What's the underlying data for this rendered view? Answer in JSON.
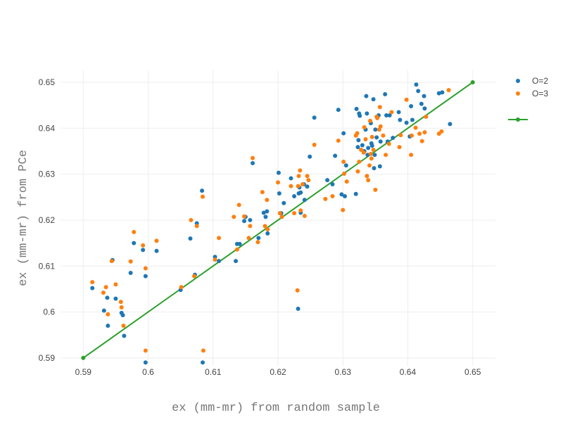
{
  "chart_data": {
    "type": "scatter",
    "title": "",
    "xlabel": "ex (mm-mr) from random sample",
    "ylabel": "ex (mm-mr) from PCe",
    "xlim": [
      0.5865,
      0.6535
    ],
    "ylim": [
      0.5883,
      0.6526
    ],
    "xticks": [
      0.59,
      0.6,
      0.61,
      0.62,
      0.63,
      0.64,
      0.65
    ],
    "xtick_labels": [
      "0.59",
      "0.6",
      "0.61",
      "0.62",
      "0.63",
      "0.64",
      "0.65"
    ],
    "yticks": [
      0.59,
      0.6,
      0.61,
      0.62,
      0.63,
      0.64,
      0.65
    ],
    "ytick_labels": [
      "0.59",
      "0.6",
      "0.61",
      "0.62",
      "0.63",
      "0.64",
      "0.65"
    ],
    "grid": true,
    "legend_position": "top-right",
    "series": [
      {
        "name": "O=2",
        "mode": "markers",
        "color": "#1f77b4",
        "points": [
          [
            0.5914,
            0.6052
          ],
          [
            0.5932,
            0.6003
          ],
          [
            0.5937,
            0.6031
          ],
          [
            0.5938,
            0.597
          ],
          [
            0.5945,
            0.6113
          ],
          [
            0.595,
            0.6029
          ],
          [
            0.5959,
            0.5998
          ],
          [
            0.5961,
            0.5993
          ],
          [
            0.5963,
            0.5948
          ],
          [
            0.5973,
            0.6085
          ],
          [
            0.5978,
            0.615
          ],
          [
            0.5992,
            0.6135
          ],
          [
            0.5996,
            0.6078
          ],
          [
            0.5996,
            0.589
          ],
          [
            0.6013,
            0.6133
          ],
          [
            0.605,
            0.6048
          ],
          [
            0.6065,
            0.616
          ],
          [
            0.6072,
            0.6081
          ],
          [
            0.6075,
            0.6193
          ],
          [
            0.6083,
            0.6264
          ],
          [
            0.6084,
            0.589
          ],
          [
            0.6103,
            0.612
          ],
          [
            0.6109,
            0.6111
          ],
          [
            0.6135,
            0.6111
          ],
          [
            0.6137,
            0.6148
          ],
          [
            0.6141,
            0.6148
          ],
          [
            0.6148,
            0.6198
          ],
          [
            0.615,
            0.6207
          ],
          [
            0.6157,
            0.62
          ],
          [
            0.6161,
            0.6324
          ],
          [
            0.617,
            0.6161
          ],
          [
            0.6178,
            0.6216
          ],
          [
            0.6181,
            0.6207
          ],
          [
            0.6183,
            0.6219
          ],
          [
            0.6184,
            0.6171
          ],
          [
            0.6201,
            0.6303
          ],
          [
            0.6202,
            0.6258
          ],
          [
            0.6205,
            0.6215
          ],
          [
            0.6209,
            0.6237
          ],
          [
            0.622,
            0.6291
          ],
          [
            0.6225,
            0.6252
          ],
          [
            0.6231,
            0.6007
          ],
          [
            0.6232,
            0.6258
          ],
          [
            0.6233,
            0.6271
          ],
          [
            0.6235,
            0.626
          ],
          [
            0.6235,
            0.6216
          ],
          [
            0.624,
            0.6278
          ],
          [
            0.6241,
            0.6244
          ],
          [
            0.6245,
            0.6273
          ],
          [
            0.6249,
            0.6338
          ],
          [
            0.6256,
            0.6423
          ],
          [
            0.6276,
            0.6287
          ],
          [
            0.6284,
            0.6278
          ],
          [
            0.6288,
            0.634
          ],
          [
            0.6293,
            0.644
          ],
          [
            0.6298,
            0.6256
          ],
          [
            0.6301,
            0.6389
          ],
          [
            0.6303,
            0.6252
          ],
          [
            0.6305,
            0.6319
          ],
          [
            0.632,
            0.6257
          ],
          [
            0.6321,
            0.6442
          ],
          [
            0.6323,
            0.6359
          ],
          [
            0.6324,
            0.6374
          ],
          [
            0.6325,
            0.6432
          ],
          [
            0.6326,
            0.6427
          ],
          [
            0.633,
            0.6363
          ],
          [
            0.6333,
            0.635
          ],
          [
            0.6335,
            0.6397
          ],
          [
            0.6336,
            0.647
          ],
          [
            0.6337,
            0.6432
          ],
          [
            0.6338,
            0.6342
          ],
          [
            0.6339,
            0.6357
          ],
          [
            0.6343,
            0.6411
          ],
          [
            0.6344,
            0.6367
          ],
          [
            0.6345,
            0.6362
          ],
          [
            0.6347,
            0.6463
          ],
          [
            0.6348,
            0.6313
          ],
          [
            0.6349,
            0.6342
          ],
          [
            0.635,
            0.6397
          ],
          [
            0.6352,
            0.638
          ],
          [
            0.6355,
            0.6428
          ],
          [
            0.6357,
            0.6317
          ],
          [
            0.6358,
            0.6371
          ],
          [
            0.6365,
            0.6474
          ],
          [
            0.6367,
            0.6428
          ],
          [
            0.6369,
            0.6371
          ],
          [
            0.6372,
            0.6428
          ],
          [
            0.6377,
            0.6379
          ],
          [
            0.6386,
            0.6435
          ],
          [
            0.6388,
            0.6418
          ],
          [
            0.6398,
            0.6412
          ],
          [
            0.6403,
            0.6382
          ],
          [
            0.6405,
            0.6448
          ],
          [
            0.6407,
            0.6418
          ],
          [
            0.6413,
            0.6495
          ],
          [
            0.6416,
            0.6481
          ],
          [
            0.6421,
            0.6453
          ],
          [
            0.6425,
            0.647
          ],
          [
            0.6426,
            0.6443
          ],
          [
            0.6448,
            0.6476
          ],
          [
            0.6453,
            0.6478
          ],
          [
            0.6465,
            0.6409
          ]
        ]
      },
      {
        "name": "O=3",
        "mode": "markers",
        "color": "#ff7f0e",
        "points": [
          [
            0.5914,
            0.6065
          ],
          [
            0.5931,
            0.6042
          ],
          [
            0.5935,
            0.6054
          ],
          [
            0.5938,
            0.5995
          ],
          [
            0.5944,
            0.6111
          ],
          [
            0.595,
            0.606
          ],
          [
            0.5958,
            0.6022
          ],
          [
            0.5959,
            0.601
          ],
          [
            0.5962,
            0.597
          ],
          [
            0.5973,
            0.611
          ],
          [
            0.5978,
            0.6174
          ],
          [
            0.5992,
            0.6145
          ],
          [
            0.5996,
            0.6095
          ],
          [
            0.5996,
            0.5916
          ],
          [
            0.6013,
            0.6155
          ],
          [
            0.6051,
            0.6054
          ],
          [
            0.6066,
            0.62
          ],
          [
            0.6071,
            0.6078
          ],
          [
            0.6075,
            0.6187
          ],
          [
            0.6084,
            0.6251
          ],
          [
            0.6085,
            0.5916
          ],
          [
            0.6103,
            0.6114
          ],
          [
            0.6109,
            0.6161
          ],
          [
            0.6132,
            0.6207
          ],
          [
            0.6137,
            0.6136
          ],
          [
            0.614,
            0.6233
          ],
          [
            0.6148,
            0.6208
          ],
          [
            0.6155,
            0.6161
          ],
          [
            0.6157,
            0.6187
          ],
          [
            0.6161,
            0.6335
          ],
          [
            0.6169,
            0.6152
          ],
          [
            0.6176,
            0.6261
          ],
          [
            0.618,
            0.6187
          ],
          [
            0.6183,
            0.6244
          ],
          [
            0.6184,
            0.618
          ],
          [
            0.62,
            0.6282
          ],
          [
            0.6203,
            0.6215
          ],
          [
            0.6206,
            0.6207
          ],
          [
            0.622,
            0.6274
          ],
          [
            0.6225,
            0.6215
          ],
          [
            0.623,
            0.6047
          ],
          [
            0.6231,
            0.6274
          ],
          [
            0.6232,
            0.6296
          ],
          [
            0.6234,
            0.6308
          ],
          [
            0.6235,
            0.6221
          ],
          [
            0.6238,
            0.6278
          ],
          [
            0.6241,
            0.6209
          ],
          [
            0.6245,
            0.6296
          ],
          [
            0.6247,
            0.6287
          ],
          [
            0.6256,
            0.6364
          ],
          [
            0.6273,
            0.6246
          ],
          [
            0.6284,
            0.6252
          ],
          [
            0.6293,
            0.6373
          ],
          [
            0.63,
            0.6222
          ],
          [
            0.6301,
            0.6327
          ],
          [
            0.6302,
            0.6301
          ],
          [
            0.6306,
            0.6284
          ],
          [
            0.632,
            0.6384
          ],
          [
            0.6322,
            0.6389
          ],
          [
            0.6323,
            0.6306
          ],
          [
            0.6325,
            0.6327
          ],
          [
            0.6328,
            0.6353
          ],
          [
            0.6332,
            0.6347
          ],
          [
            0.6333,
            0.6402
          ],
          [
            0.6335,
            0.6376
          ],
          [
            0.6337,
            0.6296
          ],
          [
            0.6339,
            0.6287
          ],
          [
            0.6341,
            0.6319
          ],
          [
            0.6342,
            0.6416
          ],
          [
            0.6343,
            0.6344
          ],
          [
            0.6344,
            0.6334
          ],
          [
            0.6345,
            0.6381
          ],
          [
            0.6347,
            0.6353
          ],
          [
            0.635,
            0.6266
          ],
          [
            0.6352,
            0.6425
          ],
          [
            0.6353,
            0.6422
          ],
          [
            0.6356,
            0.6397
          ],
          [
            0.6357,
            0.6446
          ],
          [
            0.6358,
            0.6404
          ],
          [
            0.6362,
            0.6384
          ],
          [
            0.6366,
            0.6342
          ],
          [
            0.6371,
            0.6366
          ],
          [
            0.6375,
            0.6435
          ],
          [
            0.6387,
            0.6359
          ],
          [
            0.6389,
            0.6385
          ],
          [
            0.6398,
            0.6462
          ],
          [
            0.6405,
            0.6342
          ],
          [
            0.6406,
            0.6384
          ],
          [
            0.6412,
            0.6401
          ],
          [
            0.6418,
            0.6388
          ],
          [
            0.6422,
            0.6372
          ],
          [
            0.6426,
            0.6391
          ],
          [
            0.6428,
            0.6425
          ],
          [
            0.6448,
            0.6388
          ],
          [
            0.6452,
            0.6393
          ],
          [
            0.6463,
            0.6483
          ]
        ]
      },
      {
        "name": "",
        "mode": "lines+markers",
        "color": "#2ca02c",
        "points": [
          [
            0.59,
            0.59
          ],
          [
            0.65,
            0.65
          ]
        ]
      }
    ]
  }
}
